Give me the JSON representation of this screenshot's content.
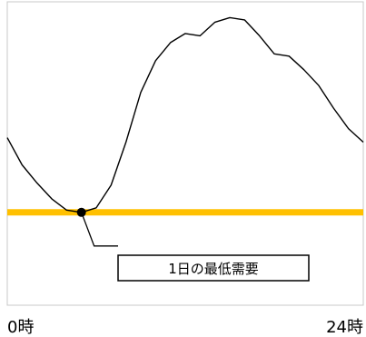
{
  "chart_data": {
    "type": "line",
    "x": [
      0,
      1,
      2,
      3,
      4,
      5,
      6,
      7,
      8,
      9,
      10,
      11,
      12,
      13,
      14,
      15,
      16,
      17,
      18,
      19,
      20,
      21,
      22,
      23,
      24
    ],
    "series": [
      {
        "values": [
          0.52,
          0.4,
          0.32,
          0.25,
          0.2,
          0.19,
          0.21,
          0.31,
          0.5,
          0.72,
          0.86,
          0.94,
          0.98,
          0.97,
          1.03,
          1.05,
          1.04,
          0.97,
          0.89,
          0.88,
          0.82,
          0.75,
          0.65,
          0.56,
          0.5
        ]
      }
    ],
    "xlim": [
      0,
      24
    ],
    "ylim": [
      -0.22,
      1.12
    ],
    "xticklabels": [
      "0時",
      "24時"
    ],
    "grid": false,
    "minimum_line": {
      "value": 0.19,
      "color": "#ffc000"
    },
    "minimum_point": {
      "x": 5,
      "y": 0.19
    },
    "annotation": "1日の最低需要",
    "line_color": "#000000"
  }
}
